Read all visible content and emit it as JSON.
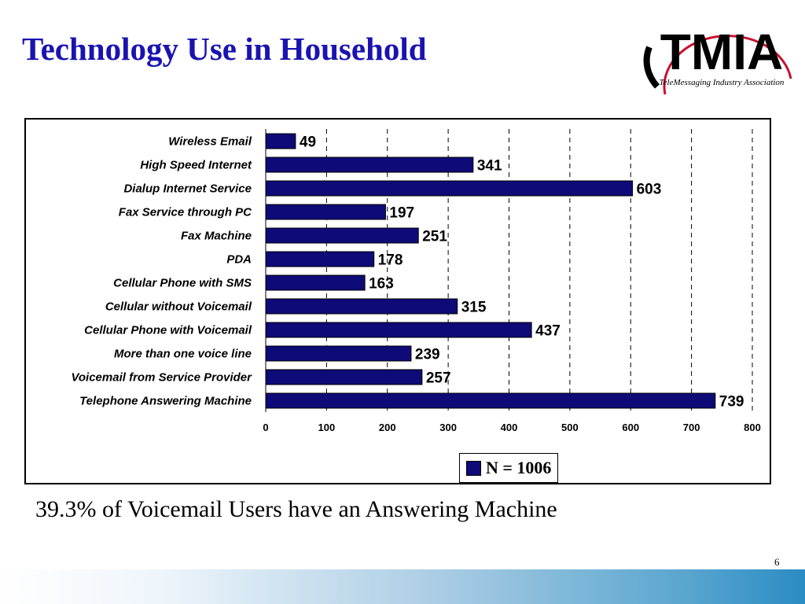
{
  "slide": {
    "title": "Technology Use in Household",
    "caption": "39.3% of Voicemail Users have an Answering Machine",
    "page_number": "6"
  },
  "logo": {
    "mark": "TMIA",
    "tagline": "TeleMessaging Industry Association",
    "colors": {
      "ring": "#c8102e",
      "letters": "#000000"
    }
  },
  "colors": {
    "title": "#1a13b0",
    "bar": "#0e0a78"
  },
  "chart_data": {
    "type": "bar",
    "orientation": "horizontal",
    "title": "",
    "xlabel": "",
    "ylabel": "",
    "xlim": [
      0,
      800
    ],
    "x_ticks": [
      "0",
      "100",
      "200",
      "300",
      "400",
      "500",
      "600",
      "700",
      "800"
    ],
    "grid": "vertical dashed",
    "legend": {
      "placement": "bottom-center",
      "entries": [
        "N = 1006"
      ]
    },
    "categories": [
      "Wireless Email",
      "High Speed Internet",
      "Dialup Internet Service",
      "Fax Service through PC",
      "Fax Machine",
      "PDA",
      "Cellular Phone with SMS",
      "Cellular without Voicemail",
      "Cellular Phone with Voicemail",
      "More than one voice line",
      "Voicemail from Service Provider",
      "Telephone Answering Machine"
    ],
    "series": [
      {
        "name": "N = 1006",
        "values": [
          49,
          341,
          603,
          197,
          251,
          178,
          163,
          315,
          437,
          239,
          257,
          739
        ],
        "labels": [
          "49",
          "341",
          "603",
          "197",
          "251",
          "178",
          "163",
          "315",
          "437",
          "239",
          "257",
          "739"
        ]
      }
    ]
  }
}
